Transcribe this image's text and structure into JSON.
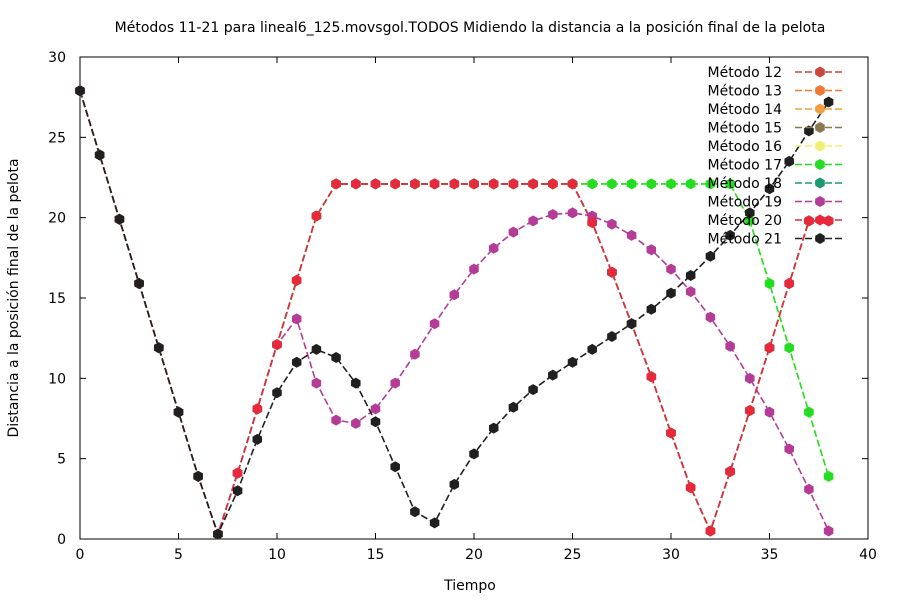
{
  "chart_data": {
    "type": "line",
    "title": "Métodos 11-21 para lineal6_125.movsgol.TODOS Midiendo la distancia a la posición final de la pelota",
    "xlabel": "Tiempo",
    "ylabel": "Distancia a la posición final de la pelota",
    "xlim": [
      0,
      40
    ],
    "ylim": [
      0,
      30
    ],
    "xticks": [
      0,
      5,
      10,
      15,
      20,
      25,
      30,
      35,
      40
    ],
    "yticks": [
      0,
      5,
      10,
      15,
      20,
      25,
      30
    ],
    "legend_position": "top-right",
    "grid": false,
    "series": [
      {
        "name": "Método 12",
        "color": "#c8463c",
        "dash": "dashed",
        "x": [
          0,
          1,
          2,
          3,
          4,
          5,
          6,
          7,
          8,
          9,
          10,
          11,
          12,
          13,
          14,
          15,
          16,
          17,
          18,
          19,
          20,
          21,
          22,
          23,
          24,
          25,
          26,
          27,
          28,
          29,
          30,
          31,
          32,
          33,
          34,
          35,
          36,
          37,
          38
        ],
        "y": [
          27.9,
          23.9,
          19.9,
          15.9,
          11.9,
          7.9,
          3.9,
          0.3,
          4.1,
          8.1,
          12.1,
          16.1,
          20.1,
          22.1,
          22.1,
          22.1,
          22.1,
          22.1,
          22.1,
          22.1,
          22.1,
          22.1,
          22.1,
          22.1,
          22.1,
          22.1,
          19.7,
          16.6,
          13.4,
          10.1,
          6.6,
          3.2,
          0.5,
          4.2,
          8.0,
          11.9,
          15.9,
          19.8,
          19.8
        ]
      },
      {
        "name": "Método 13",
        "color": "#f07830",
        "dash": "dashed",
        "x": [
          0,
          1,
          2,
          3,
          4,
          5,
          6,
          7,
          8,
          9,
          10,
          11,
          12,
          13,
          14,
          15,
          16,
          17,
          18,
          19,
          20,
          21,
          22,
          23,
          24,
          25,
          26,
          27,
          28,
          29,
          30,
          31,
          32,
          33,
          34,
          35,
          36,
          37,
          38
        ],
        "y": [
          27.9,
          23.9,
          19.9,
          15.9,
          11.9,
          7.9,
          3.9,
          0.3,
          4.1,
          8.1,
          12.1,
          16.1,
          20.1,
          22.1,
          22.1,
          22.1,
          22.1,
          22.1,
          22.1,
          22.1,
          22.1,
          22.1,
          22.1,
          22.1,
          22.1,
          22.1,
          19.7,
          16.6,
          13.4,
          10.1,
          6.6,
          3.2,
          0.5,
          4.2,
          8.0,
          11.9,
          15.9,
          19.8,
          19.8
        ]
      },
      {
        "name": "Método 14",
        "color": "#f0a040",
        "dash": "dashed",
        "x": [
          0,
          1,
          2,
          3,
          4,
          5,
          6,
          7,
          8,
          9,
          10,
          11,
          12,
          13,
          14,
          15,
          16,
          17,
          18,
          19,
          20,
          21,
          22,
          23,
          24,
          25,
          26,
          27,
          28,
          29,
          30,
          31,
          32,
          33,
          34,
          35,
          36,
          37,
          38
        ],
        "y": [
          27.9,
          23.9,
          19.9,
          15.9,
          11.9,
          7.9,
          3.9,
          0.3,
          4.1,
          8.1,
          12.1,
          16.1,
          20.1,
          22.1,
          22.1,
          22.1,
          22.1,
          22.1,
          22.1,
          22.1,
          22.1,
          22.1,
          22.1,
          22.1,
          22.1,
          22.1,
          19.7,
          16.6,
          13.4,
          10.1,
          6.6,
          3.2,
          0.5,
          4.2,
          8.0,
          11.9,
          15.9,
          19.8,
          19.8
        ]
      },
      {
        "name": "Método 15",
        "color": "#8c7850",
        "dash": "dashed",
        "x": [
          0,
          1,
          2,
          3,
          4,
          5,
          6,
          7,
          8,
          9,
          10,
          11,
          12,
          13,
          14,
          15,
          16,
          17,
          18,
          19,
          20,
          21,
          22,
          23,
          24,
          25,
          26,
          27,
          28,
          29,
          30,
          31,
          32,
          33,
          34,
          35,
          36,
          37,
          38
        ],
        "y": [
          27.9,
          23.9,
          19.9,
          15.9,
          11.9,
          7.9,
          3.9,
          0.3,
          4.1,
          8.1,
          12.1,
          16.1,
          20.1,
          22.1,
          22.1,
          22.1,
          22.1,
          22.1,
          22.1,
          22.1,
          22.1,
          22.1,
          22.1,
          22.1,
          22.1,
          22.1,
          19.7,
          16.6,
          13.4,
          10.1,
          6.6,
          3.2,
          0.5,
          4.2,
          8.0,
          11.9,
          15.9,
          19.8,
          19.8
        ]
      },
      {
        "name": "Método 16",
        "color": "#f0f070",
        "dash": "dashed",
        "x": [
          0,
          1,
          2,
          3,
          4,
          5,
          6,
          7,
          8,
          9,
          10,
          11,
          12,
          13,
          14,
          15,
          16,
          17,
          18,
          19,
          20,
          21,
          22,
          23,
          24,
          25,
          26,
          27,
          28,
          29,
          30,
          31,
          32,
          33,
          34,
          35,
          36,
          37,
          38
        ],
        "y": [
          27.9,
          23.9,
          19.9,
          15.9,
          11.9,
          7.9,
          3.9,
          0.3,
          4.1,
          8.1,
          12.1,
          16.1,
          20.1,
          22.1,
          22.1,
          22.1,
          22.1,
          22.1,
          22.1,
          22.1,
          22.1,
          22.1,
          22.1,
          22.1,
          22.1,
          22.1,
          22.1,
          22.1,
          22.1,
          22.1,
          22.1,
          22.1,
          22.1,
          22.1,
          19.8,
          15.9,
          11.9,
          7.9,
          3.9
        ]
      },
      {
        "name": "Método 17",
        "color": "#22dd22",
        "dash": "dashed",
        "x": [
          0,
          1,
          2,
          3,
          4,
          5,
          6,
          7,
          8,
          9,
          10,
          11,
          12,
          13,
          14,
          15,
          16,
          17,
          18,
          19,
          20,
          21,
          22,
          23,
          24,
          25,
          26,
          27,
          28,
          29,
          30,
          31,
          32,
          33,
          34,
          35,
          36,
          37,
          38
        ],
        "y": [
          27.9,
          23.9,
          19.9,
          15.9,
          11.9,
          7.9,
          3.9,
          0.3,
          4.1,
          8.1,
          12.1,
          16.1,
          20.1,
          22.1,
          22.1,
          22.1,
          22.1,
          22.1,
          22.1,
          22.1,
          22.1,
          22.1,
          22.1,
          22.1,
          22.1,
          22.1,
          22.1,
          22.1,
          22.1,
          22.1,
          22.1,
          22.1,
          22.1,
          22.1,
          19.8,
          15.9,
          11.9,
          7.9,
          3.9
        ]
      },
      {
        "name": "Método 18",
        "color": "#1a9a70",
        "dash": "dashed",
        "x": [
          0,
          1,
          2,
          3,
          4,
          5,
          6,
          7,
          8,
          9,
          10,
          11,
          12,
          13,
          14,
          15,
          16,
          17,
          18,
          19,
          20,
          21,
          22,
          23,
          24,
          25,
          26,
          27,
          28,
          29,
          30,
          31,
          32,
          33,
          34,
          35,
          36,
          37,
          38
        ],
        "y": [
          27.9,
          23.9,
          19.9,
          15.9,
          11.9,
          7.9,
          3.9,
          0.3,
          4.1,
          8.1,
          12.1,
          16.1,
          20.1,
          22.1,
          22.1,
          22.1,
          22.1,
          22.1,
          22.1,
          22.1,
          22.1,
          22.1,
          22.1,
          22.1,
          22.1,
          22.1,
          19.7,
          16.6,
          13.4,
          10.1,
          6.6,
          3.2,
          0.5,
          4.2,
          8.0,
          11.9,
          15.9,
          19.8,
          19.8
        ]
      },
      {
        "name": "Método 19",
        "color": "#b43c96",
        "dash": "dashed",
        "x": [
          0,
          1,
          2,
          3,
          4,
          5,
          6,
          7,
          8,
          9,
          10,
          11,
          12,
          13,
          14,
          15,
          16,
          17,
          18,
          19,
          20,
          21,
          22,
          23,
          24,
          25,
          26,
          27,
          28,
          29,
          30,
          31,
          32,
          33,
          34,
          35,
          36,
          37,
          38
        ],
        "y": [
          27.9,
          23.9,
          19.9,
          15.9,
          11.9,
          7.9,
          3.9,
          0.3,
          4.1,
          8.1,
          12.1,
          13.7,
          9.7,
          7.4,
          7.2,
          8.1,
          9.7,
          11.5,
          13.4,
          15.2,
          16.8,
          18.1,
          19.1,
          19.8,
          20.2,
          20.3,
          20.1,
          19.6,
          18.9,
          18.0,
          16.8,
          15.4,
          13.8,
          12.0,
          10.0,
          7.9,
          5.6,
          3.1,
          0.5
        ]
      },
      {
        "name": "Método 20",
        "color": "#e8283c",
        "dash": "dashed",
        "x": [
          0,
          1,
          2,
          3,
          4,
          5,
          6,
          7,
          8,
          9,
          10,
          11,
          12,
          13,
          14,
          15,
          16,
          17,
          18,
          19,
          20,
          21,
          22,
          23,
          24,
          25,
          26,
          27,
          28,
          29,
          30,
          31,
          32,
          33,
          34,
          35,
          36,
          37,
          38
        ],
        "y": [
          27.9,
          23.9,
          19.9,
          15.9,
          11.9,
          7.9,
          3.9,
          0.3,
          4.1,
          8.1,
          12.1,
          16.1,
          20.1,
          22.1,
          22.1,
          22.1,
          22.1,
          22.1,
          22.1,
          22.1,
          22.1,
          22.1,
          22.1,
          22.1,
          22.1,
          22.1,
          19.7,
          16.6,
          13.4,
          10.1,
          6.6,
          3.2,
          0.5,
          4.2,
          8.0,
          11.9,
          15.9,
          19.8,
          19.8
        ]
      },
      {
        "name": "Método 21",
        "color": "#202020",
        "dash": "dashed",
        "x": [
          0,
          1,
          2,
          3,
          4,
          5,
          6,
          7,
          8,
          9,
          10,
          11,
          12,
          13,
          14,
          15,
          16,
          17,
          18,
          19,
          20,
          21,
          22,
          23,
          24,
          25,
          26,
          27,
          28,
          29,
          30,
          31,
          32,
          33,
          34,
          35,
          36,
          37,
          38
        ],
        "y": [
          27.9,
          23.9,
          19.9,
          15.9,
          11.9,
          7.9,
          3.9,
          0.3,
          3.0,
          6.2,
          9.1,
          11.0,
          11.8,
          11.3,
          9.7,
          7.3,
          4.5,
          1.7,
          1.0,
          3.4,
          5.3,
          6.9,
          8.2,
          9.3,
          10.2,
          11.0,
          11.8,
          12.6,
          13.4,
          14.3,
          15.3,
          16.4,
          17.6,
          18.9,
          20.3,
          21.8,
          23.5,
          25.4,
          27.2
        ]
      }
    ]
  }
}
